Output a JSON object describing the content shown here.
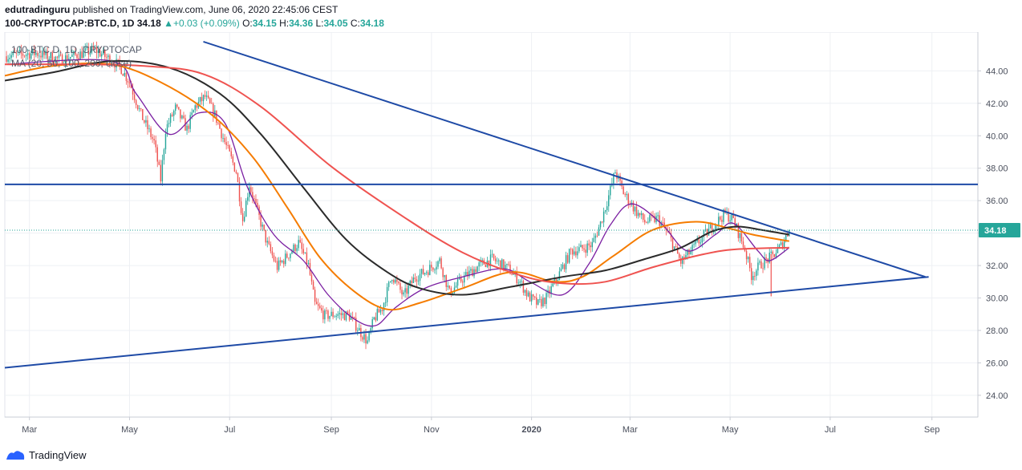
{
  "header": {
    "publisher": "edutradinguru",
    "published_text": "published on TradingView.com, June 06, 2020 22:45:06 CEST",
    "symbol": "100-CRYPTOCAP:BTC.D, 1D",
    "last": "34.18",
    "change": "+0.03 (+0.09%)",
    "o_label": "O:",
    "o": "34.15",
    "h_label": "H:",
    "h": "34.36",
    "l_label": "L:",
    "l": "34.05",
    "c_label": "C:",
    "c": "34.18"
  },
  "legend": {
    "line1": "100-BTC.D, 1D, CRYPTOCAP",
    "line2": "MA (20, 50, 100, 200, close)"
  },
  "footer": {
    "brand": "TradingView"
  },
  "colors": {
    "up": "#26a69a",
    "down": "#ef5350",
    "trendline": "#1e4aa6",
    "ma20": "#7b1fa2",
    "ma50": "#f57c00",
    "ma100": "#2b2b2b",
    "ma200": "#ef5350",
    "grid": "#eef0f4",
    "axis_text": "#4a4f5c",
    "price_tag": "#26a69a"
  },
  "chart_data": {
    "type": "candlestick",
    "title": "100-BTC.D, 1D, CRYPTOCAP",
    "ylim": [
      23.4,
      45.6
    ],
    "y_ticks": [
      "24.00",
      "26.00",
      "28.00",
      "30.00",
      "32.00",
      "34.00",
      "36.00",
      "38.00",
      "40.00",
      "42.00",
      "44.00"
    ],
    "x_axis_start": "2019-02-14",
    "x_axis_end": "2020-09-29",
    "x_ticks": [
      {
        "date": "2019-03-01",
        "label": "Mar"
      },
      {
        "date": "2019-05-01",
        "label": "May"
      },
      {
        "date": "2019-07-01",
        "label": "Jul"
      },
      {
        "date": "2019-09-01",
        "label": "Sep"
      },
      {
        "date": "2019-11-01",
        "label": "Nov"
      },
      {
        "date": "2020-01-01",
        "label": "2020",
        "bold": true
      },
      {
        "date": "2020-03-01",
        "label": "Mar"
      },
      {
        "date": "2020-05-01",
        "label": "May"
      },
      {
        "date": "2020-07-01",
        "label": "Jul"
      },
      {
        "date": "2020-09-01",
        "label": "Sep"
      }
    ],
    "last_price": 34.18,
    "last_price_label": "34.18",
    "price_path": [
      [
        "2019-02-14",
        44.9
      ],
      [
        "2019-03-05",
        45.1
      ],
      [
        "2019-03-20",
        44.7
      ],
      [
        "2019-04-10",
        45.3
      ],
      [
        "2019-04-25",
        44.3
      ],
      [
        "2019-05-01",
        43.3
      ],
      [
        "2019-05-08",
        41.3
      ],
      [
        "2019-05-16",
        39.6
      ],
      [
        "2019-05-20",
        37.3
      ],
      [
        "2019-05-23",
        40.4
      ],
      [
        "2019-05-29",
        41.7
      ],
      [
        "2019-06-05",
        40.4
      ],
      [
        "2019-06-10",
        41.8
      ],
      [
        "2019-06-16",
        42.4
      ],
      [
        "2019-06-22",
        41.3
      ],
      [
        "2019-06-28",
        39.6
      ],
      [
        "2019-07-05",
        37.8
      ],
      [
        "2019-07-09",
        34.8
      ],
      [
        "2019-07-13",
        37.0
      ],
      [
        "2019-07-18",
        35.3
      ],
      [
        "2019-07-24",
        33.3
      ],
      [
        "2019-07-30",
        31.9
      ],
      [
        "2019-08-06",
        32.7
      ],
      [
        "2019-08-12",
        33.4
      ],
      [
        "2019-08-18",
        32.0
      ],
      [
        "2019-08-22",
        29.6
      ],
      [
        "2019-08-28",
        28.9
      ],
      [
        "2019-09-05",
        29.0
      ],
      [
        "2019-09-12",
        28.9
      ],
      [
        "2019-09-18",
        28.0
      ],
      [
        "2019-09-23",
        27.3
      ],
      [
        "2019-09-27",
        28.7
      ],
      [
        "2019-10-02",
        29.4
      ],
      [
        "2019-10-08",
        31.4
      ],
      [
        "2019-10-15",
        30.1
      ],
      [
        "2019-10-22",
        31.3
      ],
      [
        "2019-10-28",
        31.6
      ],
      [
        "2019-11-06",
        32.3
      ],
      [
        "2019-11-12",
        30.3
      ],
      [
        "2019-11-20",
        31.2
      ],
      [
        "2019-11-30",
        32.0
      ],
      [
        "2019-12-08",
        32.4
      ],
      [
        "2019-12-18",
        31.8
      ],
      [
        "2019-12-25",
        31.0
      ],
      [
        "2019-12-30",
        30.1
      ],
      [
        "2020-01-05",
        29.6
      ],
      [
        "2020-01-10",
        30.0
      ],
      [
        "2020-01-18",
        31.5
      ],
      [
        "2020-01-25",
        32.9
      ],
      [
        "2020-01-31",
        33.0
      ],
      [
        "2020-02-07",
        33.3
      ],
      [
        "2020-02-12",
        34.6
      ],
      [
        "2020-02-17",
        36.3
      ],
      [
        "2020-02-21",
        37.8
      ],
      [
        "2020-02-26",
        36.5
      ],
      [
        "2020-03-05",
        35.3
      ],
      [
        "2020-03-10",
        34.7
      ],
      [
        "2020-03-18",
        34.9
      ],
      [
        "2020-03-25",
        33.8
      ],
      [
        "2020-04-01",
        32.2
      ],
      [
        "2020-04-08",
        33.0
      ],
      [
        "2020-04-14",
        33.7
      ],
      [
        "2020-04-22",
        34.6
      ],
      [
        "2020-04-28",
        35.2
      ],
      [
        "2020-05-03",
        34.8
      ],
      [
        "2020-05-10",
        33.0
      ],
      [
        "2020-05-14",
        31.4
      ],
      [
        "2020-05-20",
        32.1
      ],
      [
        "2020-05-27",
        32.6
      ],
      [
        "2020-06-01",
        33.2
      ],
      [
        "2020-06-06",
        34.18
      ]
    ],
    "series": [
      {
        "name": "MA 20",
        "color": "#7b1fa2",
        "points": [
          [
            "2019-02-14",
            44.4
          ],
          [
            "2019-04-20",
            44.6
          ],
          [
            "2019-05-05",
            42.6
          ],
          [
            "2019-05-25",
            40.1
          ],
          [
            "2019-06-12",
            41.4
          ],
          [
            "2019-06-28",
            40.8
          ],
          [
            "2019-07-12",
            36.8
          ],
          [
            "2019-07-28",
            33.9
          ],
          [
            "2019-08-15",
            32.3
          ],
          [
            "2019-08-30",
            30.2
          ],
          [
            "2019-09-15",
            28.7
          ],
          [
            "2019-09-28",
            28.3
          ],
          [
            "2019-10-10",
            29.4
          ],
          [
            "2019-10-28",
            30.6
          ],
          [
            "2019-11-20",
            31.3
          ],
          [
            "2019-12-15",
            31.8
          ],
          [
            "2019-12-31",
            31.0
          ],
          [
            "2020-01-20",
            30.2
          ],
          [
            "2020-02-05",
            32.1
          ],
          [
            "2020-02-18",
            34.5
          ],
          [
            "2020-03-02",
            35.8
          ],
          [
            "2020-03-20",
            34.6
          ],
          [
            "2020-04-05",
            32.9
          ],
          [
            "2020-04-22",
            33.9
          ],
          [
            "2020-05-03",
            34.6
          ],
          [
            "2020-05-18",
            32.9
          ],
          [
            "2020-05-25",
            32.3
          ],
          [
            "2020-06-06",
            33.1
          ]
        ]
      },
      {
        "name": "MA 50",
        "color": "#f57c00",
        "points": [
          [
            "2019-02-14",
            43.7
          ],
          [
            "2019-03-15",
            44.3
          ],
          [
            "2019-04-20",
            44.4
          ],
          [
            "2019-05-20",
            43.3
          ],
          [
            "2019-06-20",
            41.3
          ],
          [
            "2019-07-15",
            38.7
          ],
          [
            "2019-08-05",
            35.6
          ],
          [
            "2019-08-25",
            32.5
          ],
          [
            "2019-09-15",
            30.4
          ],
          [
            "2019-10-05",
            29.3
          ],
          [
            "2019-10-25",
            29.7
          ],
          [
            "2019-11-20",
            30.6
          ],
          [
            "2019-12-20",
            31.6
          ],
          [
            "2020-01-15",
            31.0
          ],
          [
            "2020-02-01",
            31.3
          ],
          [
            "2020-02-20",
            32.6
          ],
          [
            "2020-03-15",
            34.2
          ],
          [
            "2020-04-10",
            34.7
          ],
          [
            "2020-04-30",
            34.3
          ],
          [
            "2020-05-15",
            33.9
          ],
          [
            "2020-06-06",
            33.5
          ]
        ]
      },
      {
        "name": "MA 100",
        "color": "#2b2b2b",
        "points": [
          [
            "2019-02-14",
            43.4
          ],
          [
            "2019-03-15",
            43.9
          ],
          [
            "2019-04-20",
            44.6
          ],
          [
            "2019-05-25",
            44.2
          ],
          [
            "2019-06-25",
            42.6
          ],
          [
            "2019-07-20",
            40.1
          ],
          [
            "2019-08-15",
            36.8
          ],
          [
            "2019-09-10",
            33.6
          ],
          [
            "2019-10-05",
            31.6
          ],
          [
            "2019-10-25",
            30.6
          ],
          [
            "2019-11-20",
            30.2
          ],
          [
            "2019-12-20",
            30.7
          ],
          [
            "2020-01-20",
            31.3
          ],
          [
            "2020-02-15",
            31.7
          ],
          [
            "2020-03-10",
            32.4
          ],
          [
            "2020-04-01",
            33.1
          ],
          [
            "2020-04-20",
            34.1
          ],
          [
            "2020-05-05",
            34.4
          ],
          [
            "2020-05-20",
            34.2
          ],
          [
            "2020-06-06",
            33.9
          ]
        ]
      },
      {
        "name": "MA 200",
        "color": "#ef5350",
        "points": [
          [
            "2019-02-14",
            44.4
          ],
          [
            "2019-04-01",
            44.4
          ],
          [
            "2019-05-10",
            44.3
          ],
          [
            "2019-06-15",
            43.8
          ],
          [
            "2019-07-20",
            41.8
          ],
          [
            "2019-09-01",
            38.1
          ],
          [
            "2019-10-15",
            35.0
          ],
          [
            "2019-11-20",
            32.8
          ],
          [
            "2019-12-25",
            31.4
          ],
          [
            "2020-01-20",
            30.9
          ],
          [
            "2020-02-15",
            31.0
          ],
          [
            "2020-03-15",
            31.9
          ],
          [
            "2020-04-15",
            32.7
          ],
          [
            "2020-05-05",
            33.0
          ],
          [
            "2020-06-06",
            33.1
          ]
        ]
      }
    ],
    "annotations": [
      {
        "type": "trendline",
        "name": "descending-resistance",
        "points": [
          [
            "2019-06-15",
            45.8
          ],
          [
            "2020-08-28",
            31.3
          ]
        ]
      },
      {
        "type": "trendline",
        "name": "ascending-support",
        "points": [
          [
            "2019-02-14",
            25.7
          ],
          [
            "2020-08-30",
            31.3
          ]
        ]
      },
      {
        "type": "horizontal",
        "name": "horizontal-resistance",
        "value": 37.0
      },
      {
        "type": "wick",
        "name": "may-wick",
        "date": "2020-05-26",
        "high": 32.7,
        "low": 30.1
      }
    ]
  }
}
